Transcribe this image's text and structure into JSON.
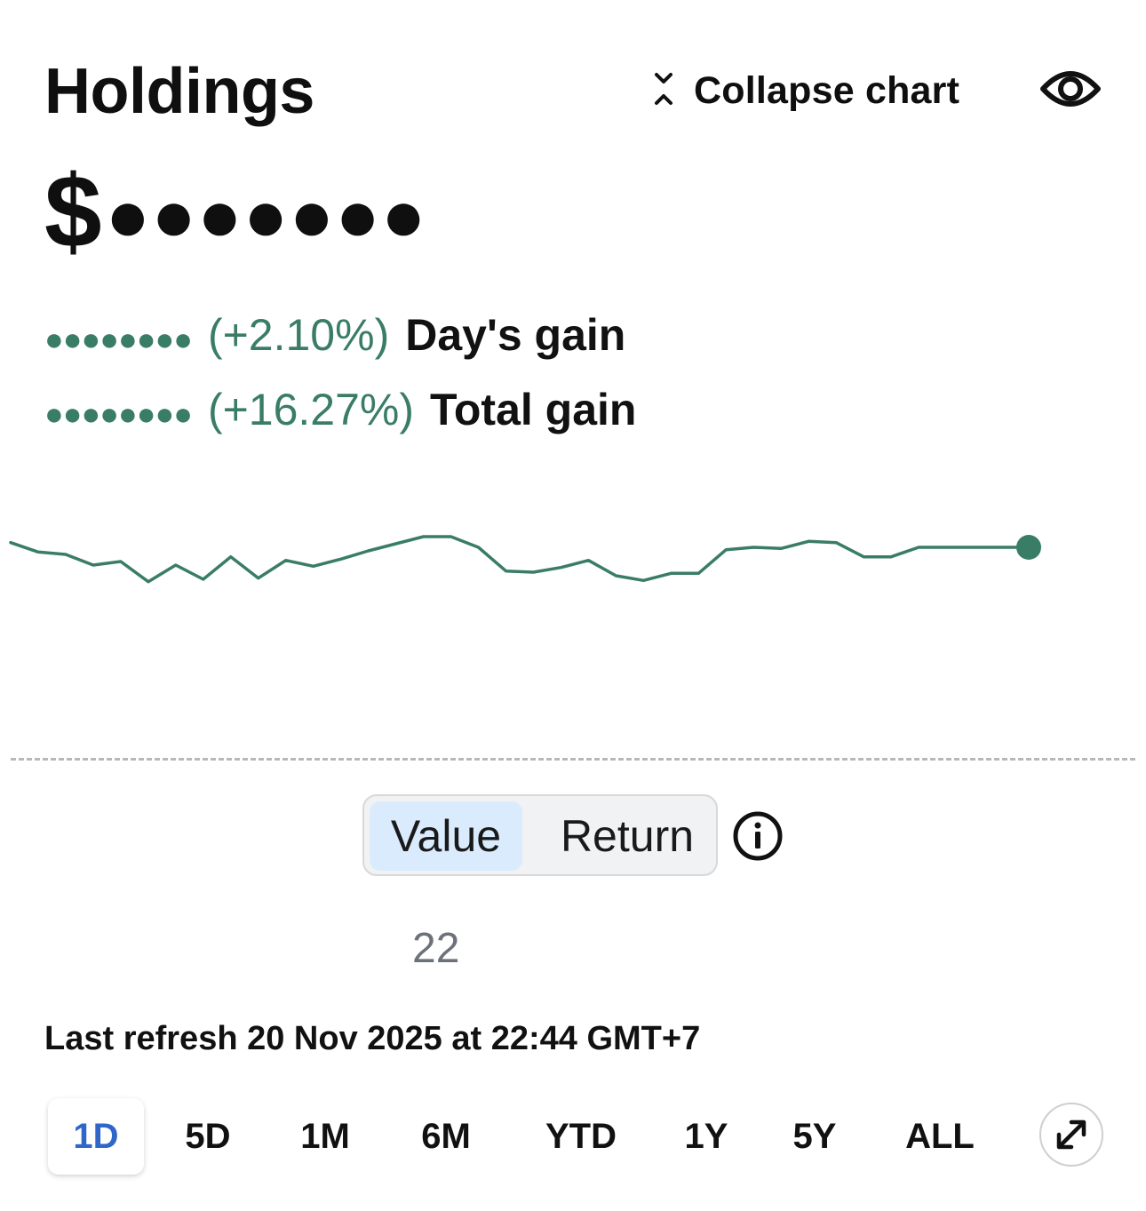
{
  "header": {
    "title": "Holdings",
    "collapse_label": "Collapse chart",
    "collapse_icon": "collapse-arrows-icon",
    "visibility_icon": "eye-icon"
  },
  "balance": {
    "currency": "$",
    "masked_value": "●●●●●●●"
  },
  "gains": {
    "day": {
      "masked_value": "●●●●●●●●",
      "percent": "(+2.10%)",
      "label": "Day's gain"
    },
    "total": {
      "masked_value": "●●●●●●●●",
      "percent": "(+16.27%)",
      "label": "Total gain"
    }
  },
  "chart_data": {
    "type": "line",
    "series": [
      {
        "values": [
          52,
          44,
          42,
          33,
          36,
          19,
          33,
          21,
          40,
          22,
          37,
          32,
          38,
          45,
          51,
          57,
          57,
          48,
          28,
          27,
          31,
          37,
          24,
          20,
          26,
          26,
          46,
          48,
          47,
          53,
          52,
          40,
          40,
          48,
          48,
          48,
          48,
          48
        ]
      }
    ],
    "line_color": "#3a7d67",
    "last_point_marker": true,
    "baseline": "dashed",
    "grid": false
  },
  "toggle": {
    "options": [
      "Value",
      "Return"
    ],
    "selected": "Value",
    "info_icon": "info-icon"
  },
  "pager": {
    "label": "22"
  },
  "refresh": {
    "text": "Last refresh 20 Nov 2025 at 22:44 GMT+7"
  },
  "ranges": {
    "options": [
      "1D",
      "5D",
      "1M",
      "6M",
      "YTD",
      "1Y",
      "5Y",
      "ALL"
    ],
    "selected": "1D",
    "expand_icon": "expand-icon"
  },
  "colors": {
    "gain_green": "#3a7d67",
    "active_range_blue": "#2f67c8",
    "toggle_selected_bg": "#d9ebfd"
  }
}
